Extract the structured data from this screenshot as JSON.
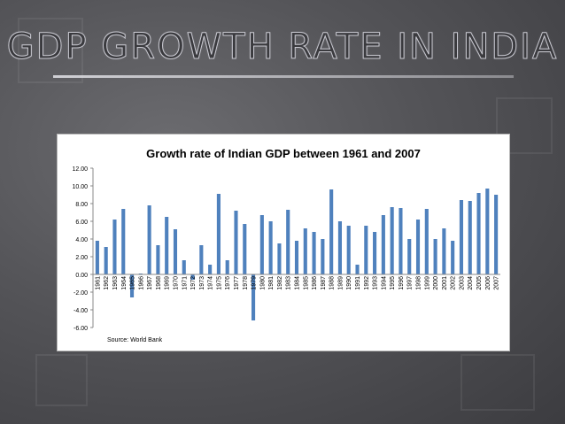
{
  "slide": {
    "title": "GDP GROWTH RATE IN INDIA"
  },
  "chart_data": {
    "type": "bar",
    "title": "Growth rate of Indian GDP between 1961 and 2007",
    "source": "Source: World Bank",
    "xlabel": "",
    "ylabel": "",
    "ylim": [
      -6,
      12
    ],
    "ytick_step": 2,
    "ytick_labels": [
      "12.00",
      "10.00",
      "8.00",
      "6.00",
      "4.00",
      "2.00",
      "0.00",
      "-2.00",
      "-4.00",
      "-6.00"
    ],
    "categories": [
      "1961",
      "1962",
      "1963",
      "1964",
      "1965",
      "1966",
      "1967",
      "1968",
      "1969",
      "1970",
      "1971",
      "1972",
      "1973",
      "1974",
      "1975",
      "1976",
      "1977",
      "1978",
      "1979",
      "1980",
      "1981",
      "1982",
      "1983",
      "1984",
      "1985",
      "1986",
      "1987",
      "1988",
      "1989",
      "1990",
      "1991",
      "1992",
      "1993",
      "1994",
      "1995",
      "1996",
      "1997",
      "1998",
      "1999",
      "2000",
      "2001",
      "2002",
      "2003",
      "2004",
      "2005",
      "2006",
      "2007"
    ],
    "values": [
      3.8,
      3.1,
      6.2,
      7.4,
      -2.6,
      0.1,
      7.8,
      3.3,
      6.5,
      5.1,
      1.6,
      -0.6,
      3.3,
      1.1,
      9.1,
      1.6,
      7.2,
      5.7,
      -5.2,
      6.7,
      6.0,
      3.5,
      7.3,
      3.8,
      5.2,
      4.8,
      4.0,
      9.6,
      6.0,
      5.5,
      1.1,
      5.5,
      4.8,
      6.7,
      7.6,
      7.5,
      4.0,
      6.2,
      7.4,
      4.0,
      5.2,
      3.8,
      8.4,
      8.3,
      9.2,
      9.7,
      9.0
    ],
    "bar_color": "#4f81bd"
  }
}
